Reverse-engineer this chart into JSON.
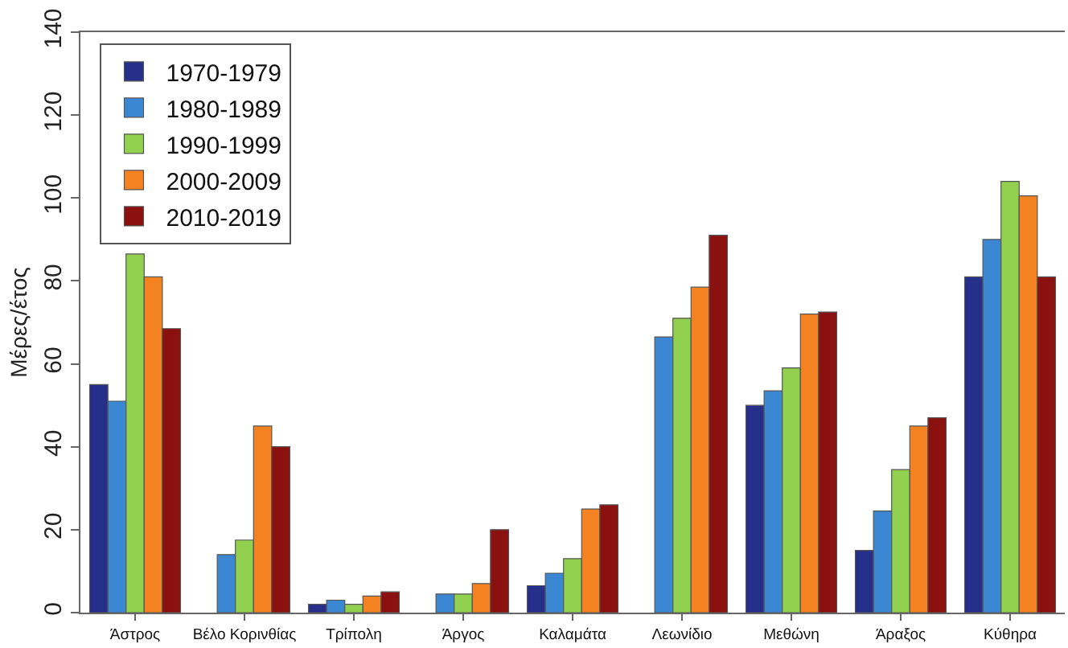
{
  "chart_data": {
    "type": "bar",
    "ylabel": "Μέρες/έτος",
    "categories": [
      "Άστρος",
      "Βέλο Κορινθίας",
      "Τρίπολη",
      "Άργος",
      "Καλαμάτα",
      "Λεωνίδιο",
      "Μεθώνη",
      "Άραξος",
      "Κύθηρα"
    ],
    "series": [
      {
        "name": "1970-1979",
        "color": "#262f8a",
        "values": [
          55,
          null,
          2,
          null,
          6.5,
          null,
          50,
          15,
          81
        ]
      },
      {
        "name": "1980-1989",
        "color": "#3b87d4",
        "values": [
          51,
          14,
          3,
          4.5,
          9.5,
          66.5,
          53.5,
          24.5,
          90
        ]
      },
      {
        "name": "1990-1999",
        "color": "#92d050",
        "values": [
          86.5,
          17.5,
          2,
          4.5,
          13,
          71,
          59,
          34.5,
          104
        ]
      },
      {
        "name": "2000-2009",
        "color": "#f58220",
        "values": [
          81,
          45,
          4,
          7,
          25,
          78.5,
          72,
          45,
          100.5
        ]
      },
      {
        "name": "2010-2019",
        "color": "#8b1010",
        "values": [
          68.5,
          40,
          5,
          20,
          26,
          91,
          72.5,
          47,
          81
        ]
      }
    ],
    "ylim": [
      0,
      140
    ],
    "yticks": [
      0,
      20,
      40,
      60,
      80,
      100,
      120,
      140
    ],
    "legend": "top left"
  }
}
